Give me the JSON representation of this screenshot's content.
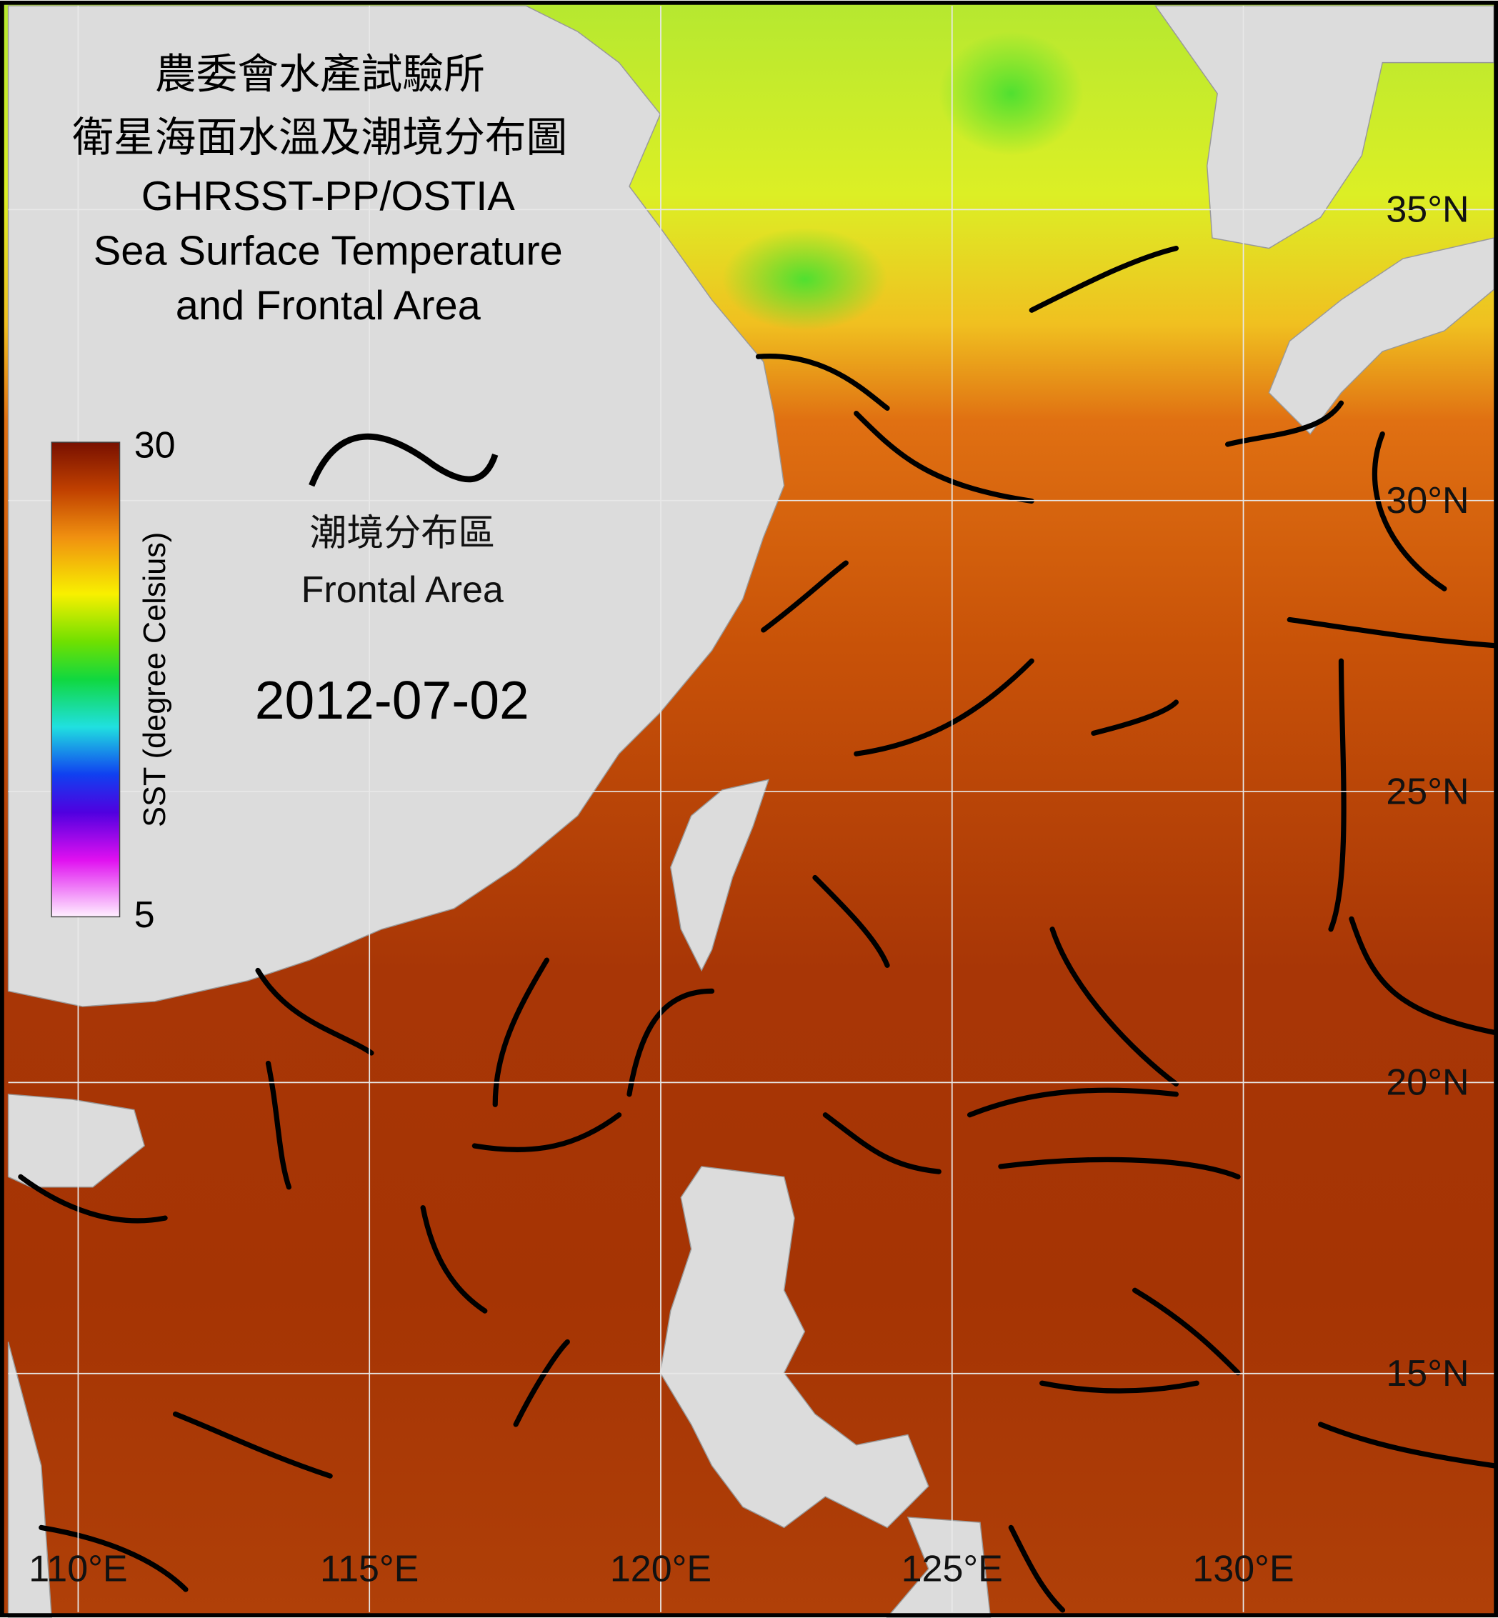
{
  "map": {
    "title": [
      "農委會水產試驗所",
      "衛星海面水溫及潮境分布圖",
      "GHRSST-PP/OSTIA",
      "Sea Surface Temperature",
      "and Frontal Area"
    ],
    "date": "2012-07-02",
    "legend": {
      "zh": "潮境分布區",
      "en": "Frontal Area"
    },
    "colorbar": {
      "label": "SST (degree Celsius)",
      "min": 5,
      "max": 30
    },
    "lon": {
      "range": [
        108.8,
        134.3
      ],
      "ticks": [
        {
          "value": 110,
          "label": "110°E"
        },
        {
          "value": 115,
          "label": "115°E"
        },
        {
          "value": 120,
          "label": "120°E"
        },
        {
          "value": 125,
          "label": "125°E"
        },
        {
          "value": 130,
          "label": "130°E"
        }
      ]
    },
    "lat": {
      "range": [
        10.9,
        38.5
      ],
      "ticks": [
        {
          "value": 15,
          "label": "15°N"
        },
        {
          "value": 20,
          "label": "20°N"
        },
        {
          "value": 25,
          "label": "25°N"
        },
        {
          "value": 30,
          "label": "30°N"
        },
        {
          "value": 35,
          "label": "35°N"
        }
      ]
    }
  }
}
